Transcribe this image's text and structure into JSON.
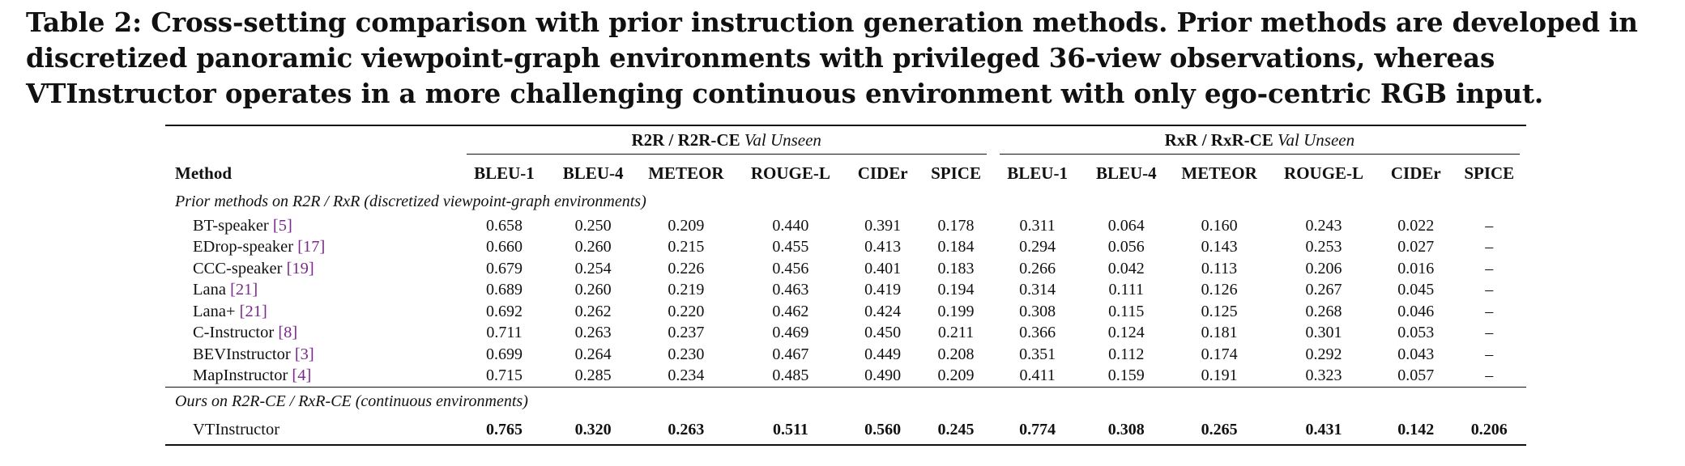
{
  "caption": "Table 2: Cross-setting comparison with prior instruction generation methods. Prior methods are developed in discretized panoramic viewpoint-graph environments with privileged 36-view observations, whereas VTInstructor operates in a more challenging continuous environment with only ego-centric RGB input.",
  "groups": [
    {
      "name": "R2R / R2R-CE",
      "split": "Val Unseen"
    },
    {
      "name": "RxR / RxR-CE",
      "split": "Val Unseen"
    }
  ],
  "columns": {
    "method": "Method",
    "metrics": [
      "BLEU-1",
      "BLEU-4",
      "METEOR",
      "ROUGE-L",
      "CIDEr",
      "SPICE",
      "BLEU-1",
      "BLEU-4",
      "METEOR",
      "ROUGE-L",
      "CIDEr",
      "SPICE"
    ]
  },
  "sections": [
    {
      "title": "Prior methods on R2R / RxR (discretized viewpoint-graph environments)",
      "rows": [
        {
          "name": "BT-speaker ",
          "cite": "[5]",
          "values": [
            "0.658",
            "0.250",
            "0.209",
            "0.440",
            "0.391",
            "0.178",
            "0.311",
            "0.064",
            "0.160",
            "0.243",
            "0.022",
            "–"
          ]
        },
        {
          "name": "EDrop-speaker ",
          "cite": "[17]",
          "values": [
            "0.660",
            "0.260",
            "0.215",
            "0.455",
            "0.413",
            "0.184",
            "0.294",
            "0.056",
            "0.143",
            "0.253",
            "0.027",
            "–"
          ]
        },
        {
          "name": "CCC-speaker ",
          "cite": "[19]",
          "values": [
            "0.679",
            "0.254",
            "0.226",
            "0.456",
            "0.401",
            "0.183",
            "0.266",
            "0.042",
            "0.113",
            "0.206",
            "0.016",
            "–"
          ]
        },
        {
          "name": "Lana ",
          "cite": "[21]",
          "values": [
            "0.689",
            "0.260",
            "0.219",
            "0.463",
            "0.419",
            "0.194",
            "0.314",
            "0.111",
            "0.126",
            "0.267",
            "0.045",
            "–"
          ]
        },
        {
          "name": "Lana+ ",
          "cite": "[21]",
          "values": [
            "0.692",
            "0.262",
            "0.220",
            "0.462",
            "0.424",
            "0.199",
            "0.308",
            "0.115",
            "0.125",
            "0.268",
            "0.046",
            "–"
          ]
        },
        {
          "name": "C-Instructor ",
          "cite": "[8]",
          "values": [
            "0.711",
            "0.263",
            "0.237",
            "0.469",
            "0.450",
            "0.211",
            "0.366",
            "0.124",
            "0.181",
            "0.301",
            "0.053",
            "–"
          ]
        },
        {
          "name": "BEVInstructor ",
          "cite": "[3]",
          "values": [
            "0.699",
            "0.264",
            "0.230",
            "0.467",
            "0.449",
            "0.208",
            "0.351",
            "0.112",
            "0.174",
            "0.292",
            "0.043",
            "–"
          ]
        },
        {
          "name": "MapInstructor ",
          "cite": "[4]",
          "values": [
            "0.715",
            "0.285",
            "0.234",
            "0.485",
            "0.490",
            "0.209",
            "0.411",
            "0.159",
            "0.191",
            "0.323",
            "0.057",
            "–"
          ]
        }
      ]
    },
    {
      "title": "Ours on R2R-CE / RxR-CE (continuous environments)",
      "rows": [
        {
          "name": "VTInstructor",
          "cite": "",
          "values": [
            "0.765",
            "0.320",
            "0.263",
            "0.511",
            "0.560",
            "0.245",
            "0.774",
            "0.308",
            "0.265",
            "0.431",
            "0.142",
            "0.206"
          ]
        }
      ]
    }
  ],
  "colors": {
    "citation": "#7a2a8c",
    "text": "#111111"
  }
}
